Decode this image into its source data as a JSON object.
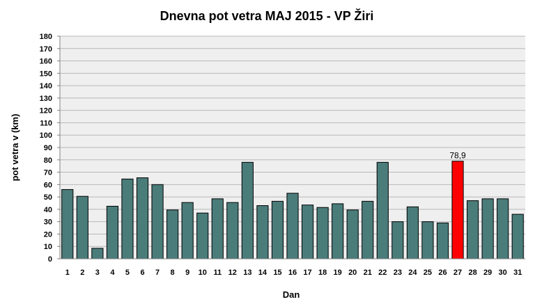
{
  "chart_data": {
    "type": "bar",
    "title": "Dnevna pot vetra MAJ 2015 - VP Žiri",
    "xlabel": "Dan",
    "ylabel": "pot vetra  v (km)",
    "ylim": [
      0,
      180
    ],
    "ytick_step": 10,
    "grid": true,
    "categories": [
      "1",
      "2",
      "3",
      "4",
      "5",
      "6",
      "7",
      "8",
      "9",
      "10",
      "11",
      "12",
      "13",
      "14",
      "15",
      "16",
      "17",
      "18",
      "19",
      "20",
      "21",
      "22",
      "23",
      "24",
      "25",
      "26",
      "27",
      "28",
      "29",
      "30",
      "31"
    ],
    "values": [
      56,
      50.5,
      8.5,
      42.5,
      64.5,
      65.5,
      60,
      39.5,
      45.5,
      37,
      48.5,
      45.5,
      78,
      43,
      46.5,
      53,
      43.5,
      41.5,
      44.5,
      39.5,
      46.5,
      78,
      30,
      42,
      30,
      29,
      78.9,
      47,
      48.5,
      48.5,
      36
    ],
    "highlight_index": 26,
    "highlight_label": "78,9",
    "colors": {
      "bar": "#4a7c7a",
      "highlight": "#ff0000",
      "grid": "#b8b8b8",
      "plot_bg": "#efefef"
    }
  }
}
